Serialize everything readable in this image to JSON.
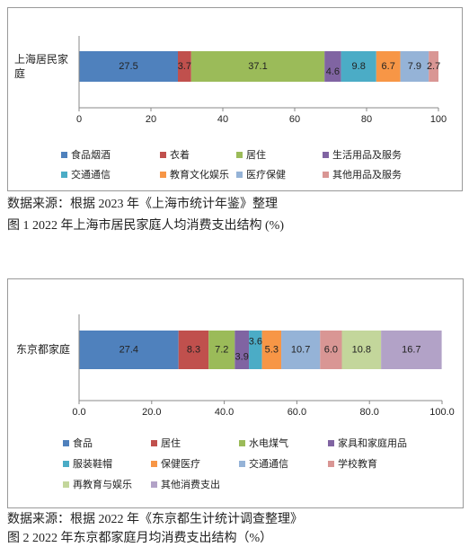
{
  "chart_data": [
    {
      "type": "bar",
      "orientation": "horizontal",
      "stacked": true,
      "categories": [
        "上海居民家庭"
      ],
      "series": [
        {
          "name": "食品烟酒",
          "color": "#4f81bd",
          "values": [
            27.5
          ]
        },
        {
          "name": "衣着",
          "color": "#c0504d",
          "values": [
            3.7
          ]
        },
        {
          "name": "居住",
          "color": "#9bbb59",
          "values": [
            37.1
          ]
        },
        {
          "name": "生活用品及服务",
          "color": "#8064a2",
          "values": [
            4.6
          ]
        },
        {
          "name": "交通通信",
          "color": "#4bacc6",
          "values": [
            9.8
          ]
        },
        {
          "name": "教育文化娱乐",
          "color": "#f79646",
          "values": [
            6.7
          ]
        },
        {
          "name": "医疗保健",
          "color": "#95b3d7",
          "values": [
            7.9
          ]
        },
        {
          "name": "其他用品及服务",
          "color": "#d99694",
          "values": [
            2.7
          ]
        }
      ],
      "xlim": [
        0,
        100
      ],
      "xticks": [
        0,
        20,
        40,
        60,
        80,
        100
      ],
      "legend": "bottom",
      "source": "数据来源：根据 2023 年《上海市统计年鉴》整理",
      "caption": "图 1 2022 年上海市居民家庭人均消费支出结构 (%)"
    },
    {
      "type": "bar",
      "orientation": "horizontal",
      "stacked": true,
      "categories": [
        "东京都家庭"
      ],
      "series": [
        {
          "name": "食品",
          "color": "#4f81bd",
          "values": [
            27.4
          ]
        },
        {
          "name": "居住",
          "color": "#c0504d",
          "values": [
            8.3
          ]
        },
        {
          "name": "水电煤气",
          "color": "#9bbb59",
          "values": [
            7.2
          ]
        },
        {
          "name": "家具和家庭用品",
          "color": "#8064a2",
          "values": [
            3.9
          ]
        },
        {
          "name": "服装鞋帽",
          "color": "#4bacc6",
          "values": [
            3.6
          ]
        },
        {
          "name": "保健医疗",
          "color": "#f79646",
          "values": [
            5.3
          ]
        },
        {
          "name": "交通通信",
          "color": "#95b3d7",
          "values": [
            10.7
          ]
        },
        {
          "name": "学校教育",
          "color": "#d99694",
          "values": [
            6.0
          ],
          "value_labels": [
            "6.0"
          ]
        },
        {
          "name": "再教育与娱乐",
          "color": "#c3d69b",
          "values": [
            10.8
          ]
        },
        {
          "name": "其他消费支出",
          "color": "#b2a2c7",
          "values": [
            16.7
          ]
        }
      ],
      "xlim": [
        0,
        100
      ],
      "xticks": [
        {
          "value": 0,
          "label": "0.0"
        },
        {
          "value": 20,
          "label": "20.0"
        },
        {
          "value": 40,
          "label": "40.0"
        },
        {
          "value": 60,
          "label": "60.0"
        },
        {
          "value": 80,
          "label": "80.0"
        },
        {
          "value": 100,
          "label": "100.0"
        }
      ],
      "legend": "bottom",
      "source": "数据来源：根据 2022 年《东京都生计统计调查整理》",
      "caption": "图 2 2022 年东京都家庭月均消费支出结构（%）"
    }
  ]
}
